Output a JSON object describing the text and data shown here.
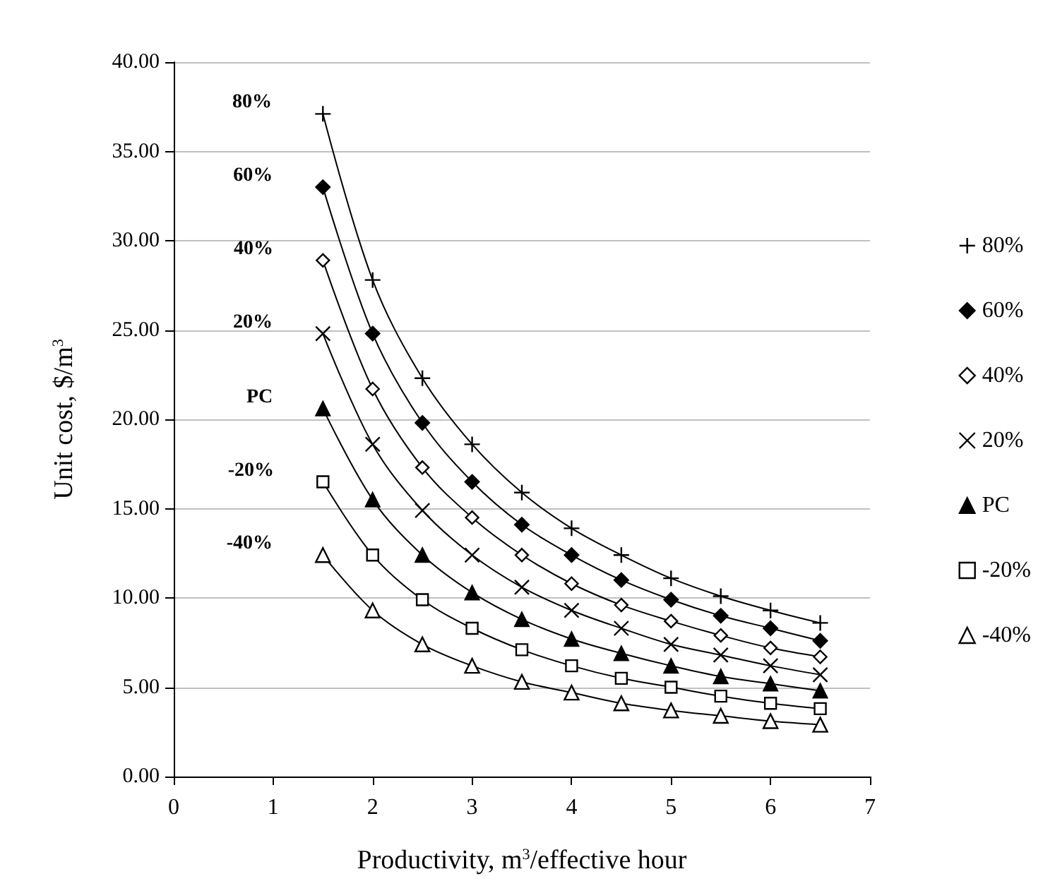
{
  "chart_data": {
    "type": "line",
    "xlabel": "Productivity, m$^{3}$/effective hour",
    "ylabel": "Unit cost, $/m$^{3}$",
    "x": [
      1.5,
      2,
      2.5,
      3,
      3.5,
      4,
      4.5,
      5,
      5.5,
      6,
      6.5
    ],
    "series": [
      {
        "name": "80%",
        "color": "#000000",
        "marker": "plus",
        "values": [
          37.1,
          27.8,
          22.3,
          18.6,
          15.9,
          13.9,
          12.4,
          11.1,
          10.1,
          9.3,
          8.6
        ]
      },
      {
        "name": "60%",
        "color": "#000000",
        "marker": "diamond",
        "values": [
          33.0,
          24.8,
          19.8,
          16.5,
          14.1,
          12.4,
          11.0,
          9.9,
          9.0,
          8.3,
          7.6
        ]
      },
      {
        "name": "40%",
        "color": "#000000",
        "marker": "diamond-open",
        "values": [
          28.9,
          21.7,
          17.3,
          14.5,
          12.4,
          10.8,
          9.6,
          8.7,
          7.9,
          7.2,
          6.7
        ]
      },
      {
        "name": "20%",
        "color": "#000000",
        "marker": "x",
        "values": [
          24.8,
          18.6,
          14.9,
          12.4,
          10.6,
          9.3,
          8.3,
          7.4,
          6.8,
          6.2,
          5.7
        ]
      },
      {
        "name": "PC",
        "color": "#000000",
        "marker": "triangle",
        "values": [
          20.6,
          15.5,
          12.4,
          10.3,
          8.8,
          7.7,
          6.9,
          6.2,
          5.6,
          5.2,
          4.8
        ]
      },
      {
        "name": "-20%",
        "color": "#000000",
        "marker": "square-open",
        "values": [
          16.5,
          12.4,
          9.9,
          8.3,
          7.1,
          6.2,
          5.5,
          5.0,
          4.5,
          4.1,
          3.8
        ]
      },
      {
        "name": "-40%",
        "color": "#000000",
        "marker": "triangle-open",
        "values": [
          12.4,
          9.3,
          7.4,
          6.2,
          5.3,
          4.7,
          4.1,
          3.7,
          3.4,
          3.1,
          2.9
        ]
      }
    ],
    "annotations": [
      "80%",
      "60%",
      "40%",
      "20%",
      "PC",
      "-20%",
      "-40%"
    ],
    "xlim": [
      0,
      7
    ],
    "xticks": [
      0,
      1,
      2,
      3,
      4,
      5,
      6,
      7
    ],
    "ylim": [
      0,
      40
    ],
    "yticks": [
      {
        "value": 0,
        "label": "0.00"
      },
      {
        "value": 5,
        "label": "5.00"
      },
      {
        "value": 10,
        "label": "10.00"
      },
      {
        "value": 15,
        "label": "15.00"
      },
      {
        "value": 20,
        "label": "20.00"
      },
      {
        "value": 25,
        "label": "25.00"
      },
      {
        "value": 30,
        "label": "30.00"
      },
      {
        "value": 35,
        "label": "35.00"
      },
      {
        "value": 40,
        "label": "40.00"
      }
    ],
    "grid": "y",
    "legend": "right"
  }
}
